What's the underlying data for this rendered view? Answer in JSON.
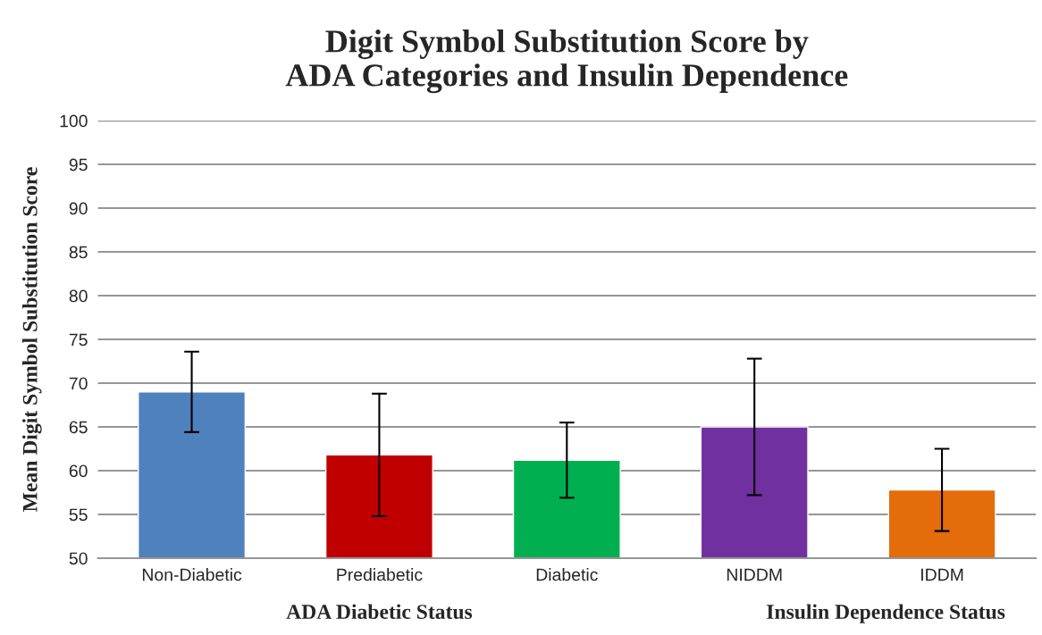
{
  "chart_data": {
    "type": "bar",
    "title": "Digit Symbol Substitution Score by\nADA Categories and Insulin Dependence",
    "categories": [
      "Non-Diabetic",
      "Prediabetic",
      "Diabetic",
      "NIDDM",
      "IDDM"
    ],
    "values": [
      69.0,
      61.8,
      61.2,
      65.0,
      57.8
    ],
    "errors": [
      4.6,
      7.0,
      4.3,
      7.8,
      4.7
    ],
    "colors": [
      "#4f81bd",
      "#c00000",
      "#00b050",
      "#7030a0",
      "#e46c0a"
    ],
    "xlabel": "ADA Diabetic Status",
    "ylabel": "Mean Digit Symbol Substitution Score",
    "annotations": [
      "Insulin Dependence Status"
    ],
    "ylim": [
      50,
      100
    ],
    "yticks": [
      50,
      55,
      60,
      65,
      70,
      75,
      80,
      85,
      90,
      95,
      100
    ],
    "grid": "y",
    "legend": false
  }
}
